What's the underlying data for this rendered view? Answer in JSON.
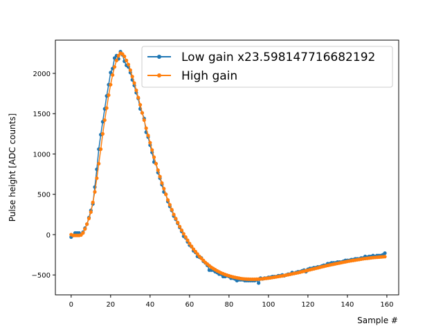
{
  "chart_data": {
    "type": "line",
    "title": "",
    "xlabel": "Sample #",
    "ylabel": "Pulse height [ADC counts]",
    "xlim": [
      -8,
      166
    ],
    "ylim": [
      -747,
      2412
    ],
    "xticks": [
      0,
      20,
      40,
      60,
      80,
      100,
      120,
      140,
      160
    ],
    "xtick_labels": [
      "0",
      "20",
      "40",
      "60",
      "80",
      "100",
      "120",
      "140",
      "160"
    ],
    "yticks": [
      -500,
      0,
      500,
      1000,
      1500,
      2000
    ],
    "ytick_labels": [
      "−500",
      "0",
      "500",
      "1000",
      "1500",
      "2000"
    ],
    "grid": false,
    "legend_position": "top-right",
    "series": [
      {
        "name": "Low gain x23.598147716682192",
        "color": "#1f77b4",
        "marker": "dot",
        "values": [
          -30,
          -10,
          20,
          20,
          20,
          0,
          30,
          80,
          130,
          210,
          300,
          380,
          590,
          810,
          1060,
          1240,
          1400,
          1560,
          1720,
          1860,
          2010,
          2060,
          2190,
          2220,
          2180,
          2270,
          2230,
          2150,
          2100,
          2080,
          2010,
          1920,
          1850,
          1760,
          1690,
          1560,
          1510,
          1440,
          1270,
          1210,
          1110,
          1020,
          900,
          880,
          770,
          700,
          620,
          530,
          500,
          410,
          350,
          300,
          230,
          190,
          140,
          90,
          40,
          -20,
          -40,
          -90,
          -130,
          -150,
          -200,
          -220,
          -270,
          -280,
          -290,
          -330,
          -350,
          -380,
          -440,
          -440,
          -440,
          -460,
          -470,
          -490,
          -490,
          -520,
          -520,
          -510,
          -520,
          -540,
          -540,
          -550,
          -570,
          -560,
          -560,
          -560,
          -570,
          -570,
          -570,
          -570,
          -570,
          -570,
          -560,
          -600,
          -540,
          -550,
          -540,
          -540,
          -530,
          -530,
          -520,
          -520,
          -520,
          -510,
          -510,
          -500,
          -510,
          -500,
          -490,
          -490,
          -470,
          -480,
          -470,
          -460,
          -460,
          -450,
          -440,
          -460,
          -430,
          -420,
          -420,
          -410,
          -410,
          -400,
          -400,
          -390,
          -380,
          -380,
          -360,
          -360,
          -350,
          -350,
          -350,
          -340,
          -340,
          -340,
          -330,
          -320,
          -320,
          -320,
          -310,
          -310,
          -300,
          -300,
          -300,
          -290,
          -290,
          -270,
          -280,
          -270,
          -270,
          -260,
          -270,
          -260,
          -260,
          -260,
          -250,
          -230
        ]
      },
      {
        "name": "High gain",
        "color": "#ff7f0e",
        "marker": "dot",
        "values": [
          0,
          -10,
          -10,
          -10,
          -10,
          -5,
          20,
          70,
          130,
          200,
          280,
          400,
          530,
          700,
          880,
          1060,
          1250,
          1420,
          1570,
          1730,
          1860,
          1980,
          2080,
          2160,
          2220,
          2250,
          2240,
          2210,
          2160,
          2110,
          2040,
          1960,
          1880,
          1790,
          1700,
          1610,
          1510,
          1420,
          1320,
          1230,
          1140,
          1050,
          960,
          880,
          800,
          720,
          640,
          570,
          500,
          430,
          370,
          310,
          250,
          200,
          150,
          100,
          55,
          10,
          -30,
          -70,
          -110,
          -145,
          -180,
          -210,
          -240,
          -270,
          -295,
          -320,
          -345,
          -365,
          -385,
          -405,
          -420,
          -435,
          -450,
          -462,
          -475,
          -485,
          -495,
          -503,
          -511,
          -518,
          -525,
          -530,
          -535,
          -540,
          -545,
          -548,
          -550,
          -552,
          -553,
          -554,
          -554,
          -554,
          -553,
          -552,
          -550,
          -548,
          -545,
          -542,
          -539,
          -536,
          -532,
          -528,
          -524,
          -520,
          -516,
          -512,
          -507,
          -502,
          -497,
          -492,
          -487,
          -482,
          -477,
          -472,
          -466,
          -460,
          -454,
          -448,
          -442,
          -436,
          -430,
          -424,
          -418,
          -412,
          -406,
          -400,
          -394,
          -388,
          -382,
          -377,
          -372,
          -367,
          -362,
          -357,
          -352,
          -347,
          -342,
          -337,
          -332,
          -328,
          -324,
          -320,
          -316,
          -312,
          -308,
          -304,
          -300,
          -297,
          -294,
          -291,
          -288,
          -285,
          -283,
          -281,
          -279,
          -277,
          -275,
          -273
        ]
      }
    ]
  }
}
